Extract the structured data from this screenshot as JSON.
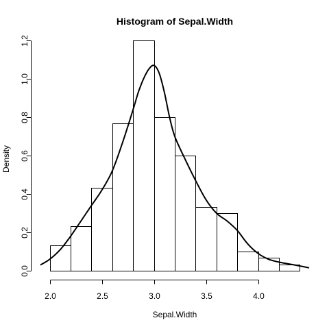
{
  "chart_data": {
    "type": "bar",
    "title": "Histogram of Sepal.Width",
    "xlabel": "Sepal.Width",
    "ylabel": "Density",
    "bins": [
      {
        "x0": 2.0,
        "x1": 2.2,
        "density": 0.1333
      },
      {
        "x0": 2.2,
        "x1": 2.4,
        "density": 0.2333
      },
      {
        "x0": 2.4,
        "x1": 2.6,
        "density": 0.4333
      },
      {
        "x0": 2.6,
        "x1": 2.8,
        "density": 0.7667
      },
      {
        "x0": 2.8,
        "x1": 3.0,
        "density": 1.2
      },
      {
        "x0": 3.0,
        "x1": 3.2,
        "density": 0.8
      },
      {
        "x0": 3.2,
        "x1": 3.4,
        "density": 0.6
      },
      {
        "x0": 3.4,
        "x1": 3.6,
        "density": 0.3333
      },
      {
        "x0": 3.6,
        "x1": 3.8,
        "density": 0.3
      },
      {
        "x0": 3.8,
        "x1": 4.0,
        "density": 0.1
      },
      {
        "x0": 4.0,
        "x1": 4.2,
        "density": 0.0667
      },
      {
        "x0": 4.2,
        "x1": 4.4,
        "density": 0.0333
      }
    ],
    "density_curve": {
      "x": [
        1.91,
        2.0,
        2.1,
        2.2,
        2.3,
        2.4,
        2.5,
        2.6,
        2.7,
        2.8,
        2.85,
        2.9,
        2.95,
        3.0,
        3.05,
        3.1,
        3.15,
        3.2,
        3.3,
        3.4,
        3.5,
        3.6,
        3.7,
        3.8,
        3.9,
        4.0,
        4.1,
        4.2,
        4.3,
        4.4,
        4.49
      ],
      "y": [
        0.03,
        0.06,
        0.11,
        0.18,
        0.26,
        0.34,
        0.42,
        0.52,
        0.67,
        0.84,
        0.93,
        1.0,
        1.05,
        1.07,
        1.03,
        0.93,
        0.8,
        0.7,
        0.58,
        0.47,
        0.37,
        0.3,
        0.26,
        0.21,
        0.14,
        0.09,
        0.06,
        0.045,
        0.035,
        0.025,
        0.015
      ]
    },
    "xlim": [
      1.91,
      4.49
    ],
    "ylim": [
      0,
      1.2
    ],
    "xticks": [
      2.0,
      2.5,
      3.0,
      3.5,
      4.0
    ],
    "xtick_labels": [
      "2.0",
      "2.5",
      "3.0",
      "3.5",
      "4.0"
    ],
    "yticks": [
      0.0,
      0.2,
      0.4,
      0.6,
      0.8,
      1.0,
      1.2
    ],
    "ytick_labels": [
      "0.0",
      "0.2",
      "0.4",
      "0.6",
      "0.8",
      "1.0",
      "1.2"
    ],
    "grid": false,
    "legend": "none"
  }
}
